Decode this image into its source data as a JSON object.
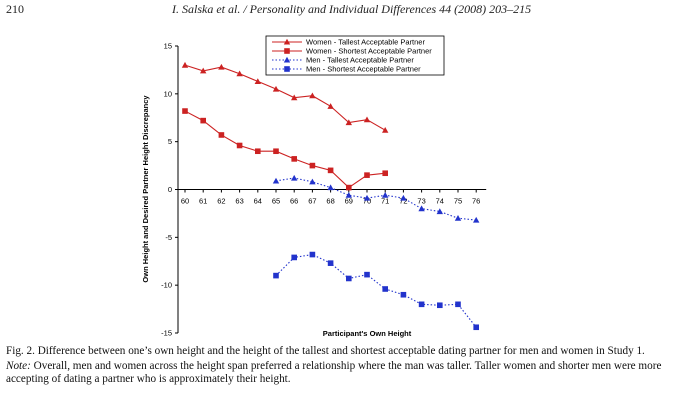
{
  "header": {
    "page_number": "210",
    "running_title": "I. Salska et al. / Personality and Individual Differences 44 (2008) 203–215"
  },
  "chart_data": {
    "type": "line",
    "title": "",
    "xlabel": "Participant's Own Height",
    "ylabel": "Own Height and Desired Partner Height Discrepancy",
    "ylim": [
      -15,
      15
    ],
    "yticks": [
      "15",
      "10",
      "5",
      "0",
      "-5",
      "-10",
      "-15"
    ],
    "x": [
      "60",
      "61",
      "62",
      "63",
      "64",
      "65",
      "66",
      "67",
      "68",
      "69",
      "70",
      "71",
      "72",
      "73",
      "74",
      "75",
      "76"
    ],
    "legend_position": "top-right",
    "series": [
      {
        "name": "Women - Tallest Acceptable Partner",
        "color": "#cc2222",
        "marker": "triangle",
        "line": "solid",
        "x": [
          60,
          61,
          62,
          63,
          64,
          65,
          66,
          67,
          68,
          69,
          70,
          71
        ],
        "values": [
          13.0,
          12.4,
          12.8,
          12.1,
          11.3,
          10.5,
          9.6,
          9.8,
          8.7,
          7.0,
          7.3,
          6.2
        ]
      },
      {
        "name": "Women - Shortest Acceptable Partner",
        "color": "#cc2222",
        "marker": "square",
        "line": "solid",
        "x": [
          60,
          61,
          62,
          63,
          64,
          65,
          66,
          67,
          68,
          69,
          70,
          71
        ],
        "values": [
          8.2,
          7.2,
          5.7,
          4.6,
          4.0,
          4.0,
          3.2,
          2.5,
          2.0,
          0.2,
          1.5,
          1.7
        ]
      },
      {
        "name": "Men - Tallest Acceptable Partner",
        "color": "#2233cc",
        "marker": "triangle",
        "line": "dotted",
        "x": [
          65,
          66,
          67,
          68,
          69,
          70,
          71,
          72,
          73,
          74,
          75,
          76
        ],
        "values": [
          0.9,
          1.2,
          0.8,
          0.2,
          -0.6,
          -0.9,
          -0.6,
          -0.9,
          -2.0,
          -2.3,
          -3.0,
          -3.2
        ]
      },
      {
        "name": "Men - Shortest Acceptable Partner",
        "color": "#2233cc",
        "marker": "square",
        "line": "dotted",
        "x": [
          65,
          66,
          67,
          68,
          69,
          70,
          71,
          72,
          73,
          74,
          75,
          76
        ],
        "values": [
          -9.0,
          -7.1,
          -6.8,
          -7.7,
          -9.3,
          -8.9,
          -10.4,
          -11.0,
          -12.0,
          -12.1,
          -12.0,
          -14.4
        ]
      }
    ]
  },
  "caption": {
    "figure": "Fig. 2.  Difference between one’s own height and the height of the tallest and shortest acceptable dating partner for men and women in Study 1.",
    "note_label": "Note:",
    "note_text": " Overall, men and women across the height span preferred a relationship where the man was taller. Taller women and shorter men were more accepting of dating a partner who is approximately their height."
  }
}
